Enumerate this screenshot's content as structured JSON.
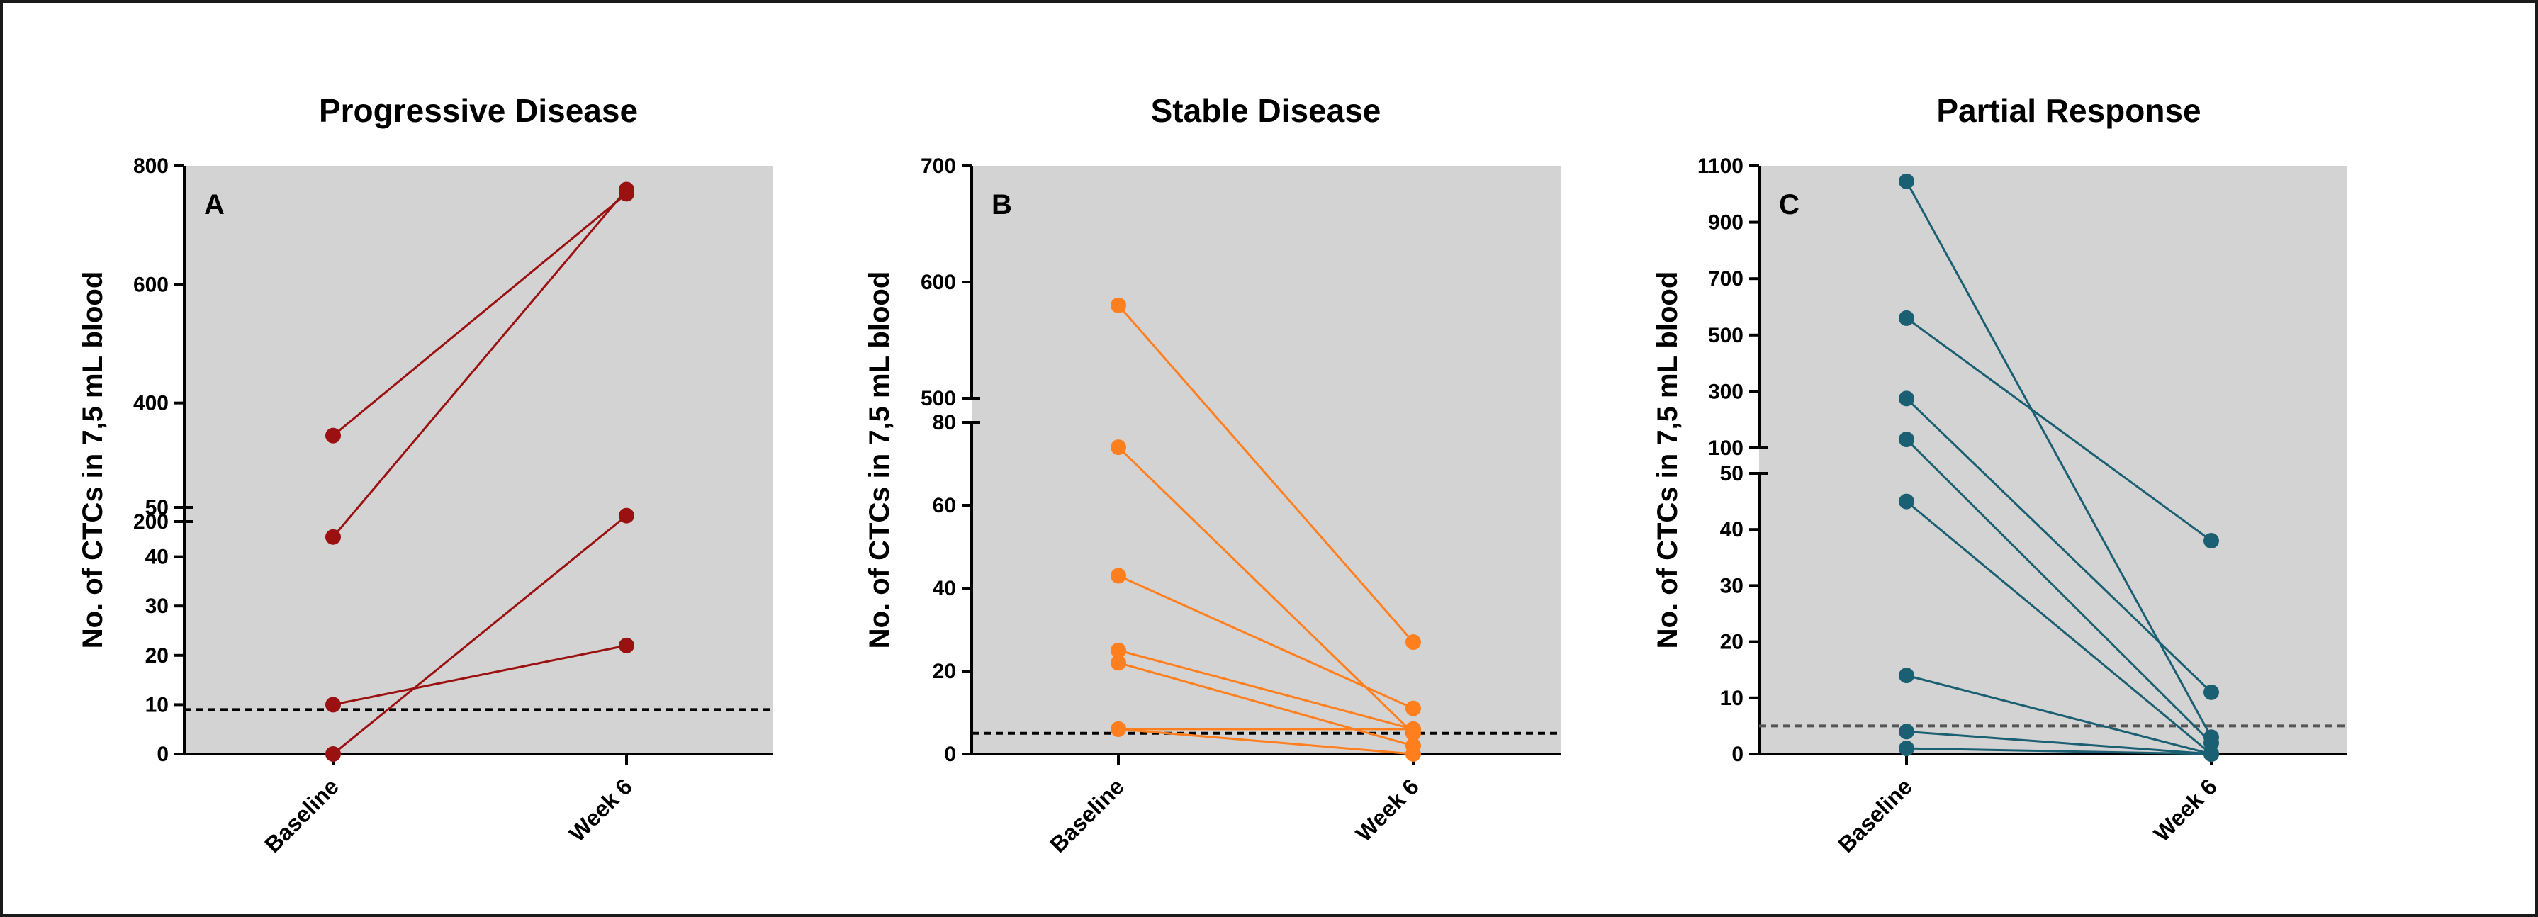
{
  "chart_data": [
    {
      "type": "line",
      "title": "Progressive Disease",
      "panel_label": "A",
      "ylabel": "No. of CTCs in 7,5 mL blood",
      "xlabel": "",
      "categories": [
        "Baseline",
        "Week 6"
      ],
      "y_axis": "broken",
      "y_lower_range": [
        0,
        50
      ],
      "y_upper_range": [
        200,
        800
      ],
      "lower_ticks": [
        "0",
        "10",
        "20",
        "30",
        "40",
        "50"
      ],
      "upper_ticks": [
        "200",
        "400",
        "600",
        "800"
      ],
      "threshold": 9,
      "color": "#9b1111",
      "background": "#d3d3d3",
      "grid": false,
      "series": [
        {
          "values": [
            345,
            753
          ]
        },
        {
          "values": [
            44,
            760
          ]
        },
        {
          "values": [
            10,
            22
          ]
        },
        {
          "values": [
            0,
            210
          ]
        }
      ]
    },
    {
      "type": "line",
      "title": "Stable Disease",
      "panel_label": "B",
      "ylabel": "No. of CTCs in 7,5 mL blood",
      "xlabel": "",
      "categories": [
        "Baseline",
        "Week 6"
      ],
      "y_axis": "broken",
      "y_lower_range": [
        0,
        80
      ],
      "y_upper_range": [
        500,
        700
      ],
      "lower_ticks": [
        "0",
        "20",
        "40",
        "60",
        "80"
      ],
      "upper_ticks": [
        "500",
        "600",
        "700"
      ],
      "threshold": 5,
      "color": "#ff7f1e",
      "background": "#d3d3d3",
      "grid": false,
      "series": [
        {
          "values": [
            580,
            27
          ]
        },
        {
          "values": [
            74,
            5
          ]
        },
        {
          "values": [
            43,
            11
          ]
        },
        {
          "values": [
            25,
            6
          ]
        },
        {
          "values": [
            22,
            2
          ]
        },
        {
          "values": [
            6,
            6
          ]
        },
        {
          "values": [
            6,
            0
          ]
        }
      ]
    },
    {
      "type": "line",
      "title": "Partial Response",
      "panel_label": "C",
      "ylabel": "No. of CTCs in 7,5 mL blood",
      "xlabel": "",
      "categories": [
        "Baseline",
        "Week 6"
      ],
      "y_axis": "broken",
      "y_lower_range": [
        0,
        50
      ],
      "y_upper_range": [
        100,
        1100
      ],
      "lower_ticks": [
        "0",
        "10",
        "20",
        "30",
        "40",
        "50"
      ],
      "upper_ticks": [
        "100",
        "300",
        "500",
        "700",
        "900",
        "1100"
      ],
      "threshold": 5,
      "color": "#1b5f72",
      "background": "#d3d3d3",
      "grid": false,
      "series": [
        {
          "values": [
            1045,
            3
          ]
        },
        {
          "values": [
            560,
            38
          ]
        },
        {
          "values": [
            275,
            11
          ]
        },
        {
          "values": [
            130,
            2
          ]
        },
        {
          "values": [
            45,
            0
          ]
        },
        {
          "values": [
            14,
            0
          ]
        },
        {
          "values": [
            4,
            0
          ]
        },
        {
          "values": [
            1,
            0
          ]
        }
      ]
    }
  ]
}
